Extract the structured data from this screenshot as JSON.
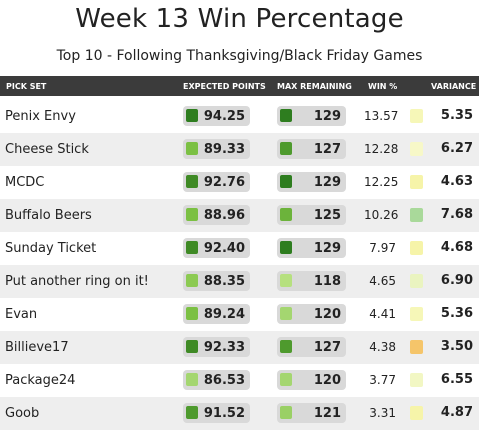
{
  "title": "Week 13 Win Percentage",
  "subtitle": "Top 10 - Following Thanksgiving/Black Friday Games",
  "columns": {
    "pick_set": "PICK SET",
    "expected_points": "EXPECTED POINTS",
    "max_remaining": "MAX REMAINING",
    "win_pct": "WIN %",
    "variance": "VARIANCE"
  },
  "colors": {
    "dark_green": "#2e7d1f",
    "mid_green": "#7bc043",
    "light_green": "#b6e07f",
    "pale_yellow": "#f6f7b8",
    "yellow": "#f3f29a",
    "orange": "#f5c56a",
    "soft_green": "#a9d99a"
  },
  "rows": [
    {
      "name": "Penix Envy",
      "expected": "94.25",
      "exp_color": "#2e7d1f",
      "max": "129",
      "max_color": "#2e7d1f",
      "win": "13.57",
      "variance": "5.35",
      "var_color": "#f6f7b8"
    },
    {
      "name": "Cheese Stick",
      "expected": "89.33",
      "exp_color": "#7bc043",
      "max": "127",
      "max_color": "#4e9a2d",
      "win": "12.28",
      "variance": "6.27",
      "var_color": "#f7f8c8"
    },
    {
      "name": "MCDC",
      "expected": "92.76",
      "exp_color": "#3f8a25",
      "max": "129",
      "max_color": "#2e7d1f",
      "win": "12.25",
      "variance": "4.63",
      "var_color": "#f6f4a9"
    },
    {
      "name": "Buffalo Beers",
      "expected": "88.96",
      "exp_color": "#7bc043",
      "max": "125",
      "max_color": "#6cb33b",
      "win": "10.26",
      "variance": "7.68",
      "var_color": "#a9d99a"
    },
    {
      "name": "Sunday Ticket",
      "expected": "92.40",
      "exp_color": "#3f8a25",
      "max": "129",
      "max_color": "#2e7d1f",
      "win": "7.97",
      "variance": "4.68",
      "var_color": "#f6f4a9"
    },
    {
      "name": "Put another ring on it!",
      "expected": "88.35",
      "exp_color": "#8cca52",
      "max": "118",
      "max_color": "#b6e07f",
      "win": "4.65",
      "variance": "6.90",
      "var_color": "#eaf4c0"
    },
    {
      "name": "Evan",
      "expected": "89.24",
      "exp_color": "#7bc043",
      "max": "120",
      "max_color": "#a4d670",
      "win": "4.41",
      "variance": "5.36",
      "var_color": "#f6f7b8"
    },
    {
      "name": "Billieve17",
      "expected": "92.33",
      "exp_color": "#3f8a25",
      "max": "127",
      "max_color": "#4e9a2d",
      "win": "4.38",
      "variance": "3.50",
      "var_color": "#f5c56a"
    },
    {
      "name": "Package24",
      "expected": "86.53",
      "exp_color": "#a4d670",
      "max": "120",
      "max_color": "#a4d670",
      "win": "3.77",
      "variance": "6.55",
      "var_color": "#f2f7c4"
    },
    {
      "name": "Goob",
      "expected": "91.52",
      "exp_color": "#4e9a2d",
      "max": "121",
      "max_color": "#9ad065",
      "win": "3.31",
      "variance": "4.87",
      "var_color": "#f6f4a9"
    }
  ]
}
